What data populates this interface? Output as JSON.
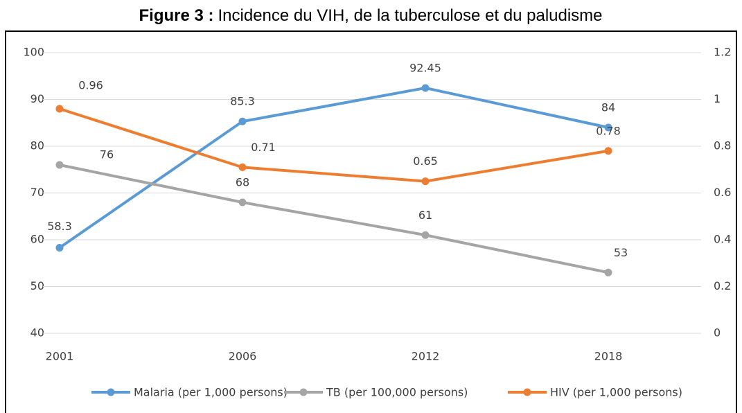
{
  "chart_data": {
    "type": "line",
    "title_label": "Figure 3 :",
    "title": "Incidence du VIH, de la tuberculose et du paludisme",
    "categories": [
      "2001",
      "2006",
      "2012",
      "2018"
    ],
    "ylim": [
      40,
      100
    ],
    "yticks": [
      40,
      50,
      60,
      70,
      80,
      90,
      100
    ],
    "y2lim": [
      0,
      1.2
    ],
    "y2ticks": [
      0,
      0.2,
      0.4,
      0.6,
      0.8,
      1,
      1.2
    ],
    "grid": true,
    "legend": "bottom",
    "series": [
      {
        "name": "Malaria (per 1,000 persons)",
        "color": "#5b9bd5",
        "values": [
          58.3,
          85.3,
          92.45,
          84
        ]
      },
      {
        "name": "TB (per 100,000 persons)",
        "color": "#a5a5a5",
        "values": [
          76,
          68,
          61,
          53
        ]
      },
      {
        "name": "HIV (per 1,000 persons)",
        "color": "#ed7d31",
        "axis": "y2",
        "values": [
          0.96,
          0.71,
          0.65,
          0.78
        ]
      }
    ]
  }
}
